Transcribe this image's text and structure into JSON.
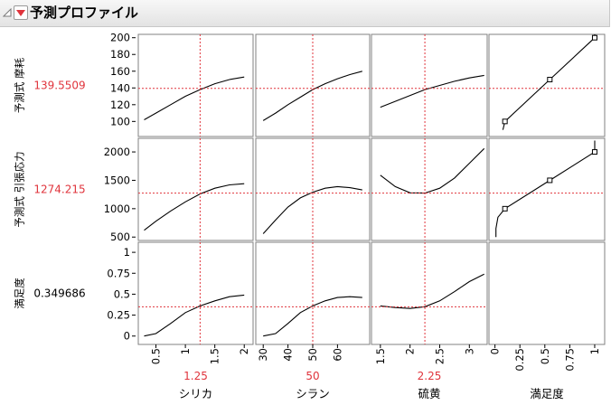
{
  "header": {
    "title": "予測プロファイル",
    "menu_icon": "red-triangle-down-icon",
    "disclosure_icon": "disclosure-triangle-icon"
  },
  "colors": {
    "accent": "#e0343c",
    "curve": "#000000",
    "frame": "#808080"
  },
  "chart_data": {
    "type": "line",
    "current_x": {
      "シリカ": 1.25,
      "シラン": 50,
      "硫黄": 2.25
    },
    "x_factors": [
      {
        "name": "シリカ",
        "current_label": "1.25",
        "xlim": [
          0.2,
          2.15
        ],
        "ticks": [
          0.5,
          1,
          1.5,
          2
        ],
        "tick_labels": [
          "0.5",
          "1",
          "1.5",
          "2"
        ]
      },
      {
        "name": "シラン",
        "current_label": "50",
        "xlim": [
          27,
          73
        ],
        "ticks": [
          30,
          40,
          50,
          60
        ],
        "tick_labels": [
          "30",
          "40",
          "50",
          "60"
        ]
      },
      {
        "name": "硫黄",
        "current_label": "2.25",
        "xlim": [
          1.35,
          3.3
        ],
        "ticks": [
          1.5,
          2,
          2.5,
          3
        ],
        "tick_labels": [
          "1.5",
          "2",
          "2.5",
          "3"
        ]
      },
      {
        "name": "満足度",
        "current_label": "",
        "xlim": [
          -0.06,
          1.1
        ],
        "ticks": [
          0,
          0.25,
          0.5,
          0.75,
          1
        ],
        "tick_labels": [
          "0",
          "0.25",
          "0.5",
          "0.75",
          "1"
        ]
      }
    ],
    "responses": [
      {
        "name": "予測式 摩耗",
        "current_value": "139.5509",
        "ylim": [
          82,
          204
        ],
        "ticks": [
          100,
          120,
          140,
          160,
          180,
          200
        ],
        "tick_labels": [
          "100",
          "120",
          "140",
          "160",
          "180",
          "200"
        ],
        "current_y": 139.5509,
        "curves": [
          {
            "x": [
              0.3,
              0.5,
              0.75,
              1.0,
              1.25,
              1.5,
              1.75,
              2.0
            ],
            "y": [
              102,
              110,
              120,
              130,
              138,
              145,
              150,
              153
            ]
          },
          {
            "x": [
              30,
              35,
              40,
              45,
              50,
              55,
              60,
              65,
              70
            ],
            "y": [
              101,
              110,
              120,
              129,
              138,
              145,
              151,
              156,
              160
            ]
          },
          {
            "x": [
              1.5,
              1.75,
              2.0,
              2.25,
              2.5,
              2.75,
              3.0,
              3.25
            ],
            "y": [
              117,
              124,
              131,
              138,
              143,
              148,
              152,
              155
            ]
          }
        ],
        "desirability": {
          "x": [
            0.08,
            0.1,
            0.55,
            1.0,
            1.0
          ],
          "y": [
            90,
            100,
            150,
            200,
            204
          ],
          "markers_x": [
            0.1,
            0.55,
            1.0
          ],
          "markers_y": [
            100,
            150,
            200
          ]
        }
      },
      {
        "name": "予測式 引張応力",
        "current_value": "1274.215",
        "ylim": [
          440,
          2240
        ],
        "ticks": [
          500,
          1000,
          1500,
          2000
        ],
        "tick_labels": [
          "500",
          "1000",
          "1500",
          "2000"
        ],
        "current_y": 1274.215,
        "curves": [
          {
            "x": [
              0.3,
              0.5,
              0.75,
              1.0,
              1.25,
              1.5,
              1.75,
              2.0
            ],
            "y": [
              620,
              780,
              960,
              1120,
              1260,
              1360,
              1420,
              1440
            ]
          },
          {
            "x": [
              30,
              35,
              40,
              45,
              50,
              55,
              60,
              65,
              70
            ],
            "y": [
              560,
              800,
              1030,
              1190,
              1290,
              1360,
              1390,
              1370,
              1330
            ]
          },
          {
            "x": [
              1.5,
              1.75,
              2.0,
              2.25,
              2.5,
              2.75,
              3.0,
              3.25
            ],
            "y": [
              1590,
              1390,
              1280,
              1275,
              1360,
              1540,
              1800,
              2060
            ]
          }
        ],
        "desirability": {
          "x": [
            0.01,
            0.01,
            0.03,
            0.1,
            0.55,
            1.0,
            1.0
          ],
          "y": [
            500,
            650,
            850,
            1000,
            1500,
            2000,
            2200
          ],
          "markers_x": [
            0.1,
            0.55,
            1.0
          ],
          "markers_y": [
            1000,
            1500,
            2000
          ]
        }
      },
      {
        "name": "満足度",
        "current_value": "0.349686",
        "ylim": [
          -0.1,
          1.12
        ],
        "ticks": [
          0,
          0.25,
          0.5,
          0.75,
          1
        ],
        "tick_labels": [
          "0",
          "0.25",
          "0.5",
          "0.75",
          "1"
        ],
        "current_y": 0.349686,
        "curves": [
          {
            "x": [
              0.3,
              0.5,
              0.75,
              1.0,
              1.25,
              1.5,
              1.75,
              2.0
            ],
            "y": [
              0.0,
              0.03,
              0.15,
              0.28,
              0.36,
              0.42,
              0.47,
              0.49
            ]
          },
          {
            "x": [
              30,
              35,
              40,
              45,
              50,
              55,
              60,
              65,
              70
            ],
            "y": [
              0.0,
              0.03,
              0.15,
              0.28,
              0.36,
              0.42,
              0.46,
              0.47,
              0.46
            ]
          },
          {
            "x": [
              1.5,
              1.75,
              2.0,
              2.25,
              2.5,
              2.75,
              3.0,
              3.25
            ],
            "y": [
              0.36,
              0.34,
              0.33,
              0.35,
              0.42,
              0.53,
              0.65,
              0.74
            ]
          }
        ],
        "desirability": null
      }
    ]
  }
}
